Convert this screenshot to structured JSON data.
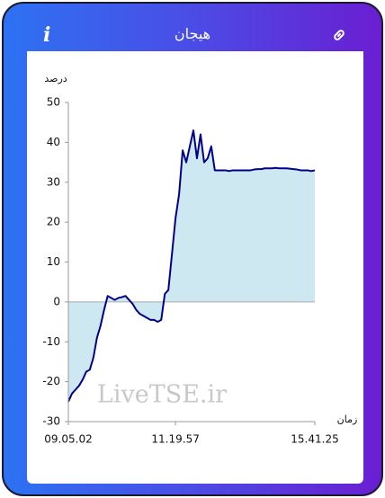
{
  "header": {
    "title": "هیجان",
    "info": "i"
  },
  "watermark": "LiveTSE.ir",
  "chart_data": {
    "type": "area",
    "ylabel": "درصد",
    "xlabel": "زمان",
    "values": [
      -25,
      -23,
      -22,
      -21,
      -19.5,
      -17.5,
      -17,
      -14,
      -9,
      -6,
      -2,
      1.5,
      1,
      0.5,
      1,
      1.2,
      1.5,
      0.5,
      -0.5,
      -2,
      -3,
      -3.5,
      -4,
      -4.5,
      -4.5,
      -5,
      -4.5,
      2,
      3,
      12,
      21,
      27,
      38,
      35,
      39,
      43,
      36,
      42,
      35,
      36,
      39,
      33,
      33,
      33,
      33,
      32.8,
      33,
      33,
      33,
      33,
      33,
      33,
      33.2,
      33.3,
      33.3,
      33.5,
      33.5,
      33.5,
      33.6,
      33.5,
      33.5,
      33.5,
      33.4,
      33.3,
      33.2,
      33,
      33,
      33,
      32.8,
      33
    ],
    "line_color": "#00008b",
    "fill_color": "#cde8f1",
    "xlim": [
      0,
      69
    ],
    "xticks": [
      {
        "value": 0,
        "label": "09.05.02"
      },
      {
        "value": 30,
        "label": "11.19.57"
      },
      {
        "value": 69,
        "label": "15.41.25"
      }
    ],
    "ylim": [
      -30,
      50
    ],
    "yticks": [
      -30,
      -20,
      -10,
      0,
      10,
      20,
      30,
      40,
      50
    ]
  }
}
